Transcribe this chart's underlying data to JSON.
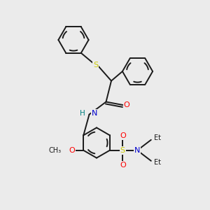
{
  "background_color": "#ebebeb",
  "bond_color": "#1a1a1a",
  "S_color": "#cccc00",
  "O_color": "#ff0000",
  "N_color": "#0000cc",
  "H_color": "#008080",
  "figsize": [
    3.0,
    3.0
  ],
  "dpi": 100,
  "lw": 1.4,
  "ring_r": 0.72,
  "xlim": [
    0,
    10
  ],
  "ylim": [
    0,
    10
  ]
}
